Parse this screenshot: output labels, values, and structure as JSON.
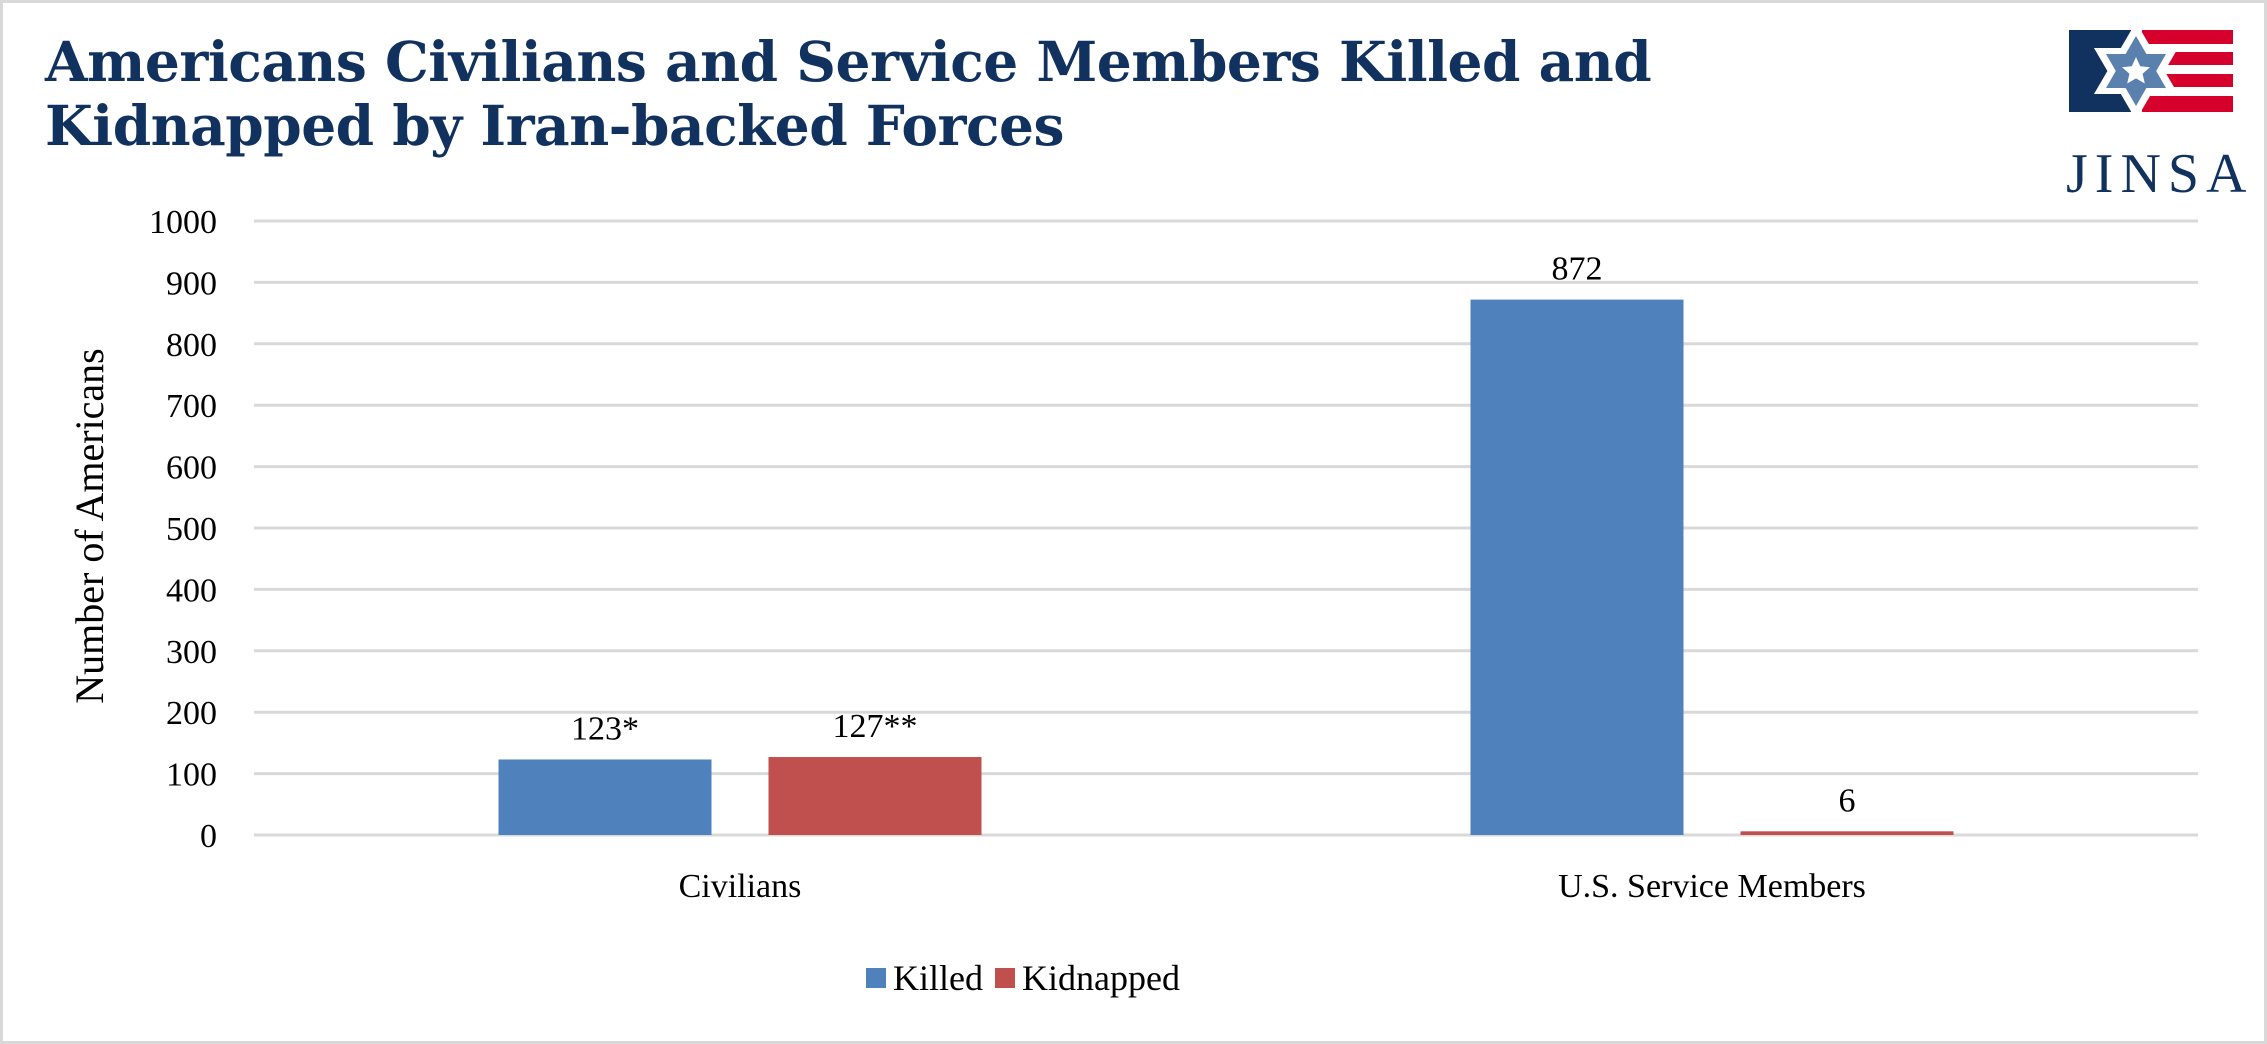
{
  "header": {
    "title_line1": "Americans Civilians and Service Members Killed and",
    "title_line2": "Kidnapped by Iran-backed Forces"
  },
  "logo": {
    "text": "JINSA",
    "icon": "jinsa-flag-star-logo",
    "colors": {
      "navy": "#11325f",
      "red": "#d5002c",
      "star_blue": "#5a80ad"
    }
  },
  "chart_data": {
    "type": "bar",
    "title": "Americans Civilians and Service Members Killed and Kidnapped by Iran-backed Forces",
    "xlabel": "",
    "ylabel": "Number of Americans",
    "ylim": [
      0,
      1000
    ],
    "yticks": [
      0,
      100,
      200,
      300,
      400,
      500,
      600,
      700,
      800,
      900,
      1000
    ],
    "grid": true,
    "legend_position": "bottom-center",
    "categories": [
      "Civilians",
      "U.S. Service Members"
    ],
    "series": [
      {
        "name": "Killed",
        "color": "#4f81bd",
        "values": [
          123,
          872
        ],
        "labels": [
          "123*",
          "872"
        ]
      },
      {
        "name": "Kidnapped",
        "color": "#c0504d",
        "values": [
          127,
          6
        ],
        "labels": [
          "127**",
          "6"
        ]
      }
    ]
  }
}
